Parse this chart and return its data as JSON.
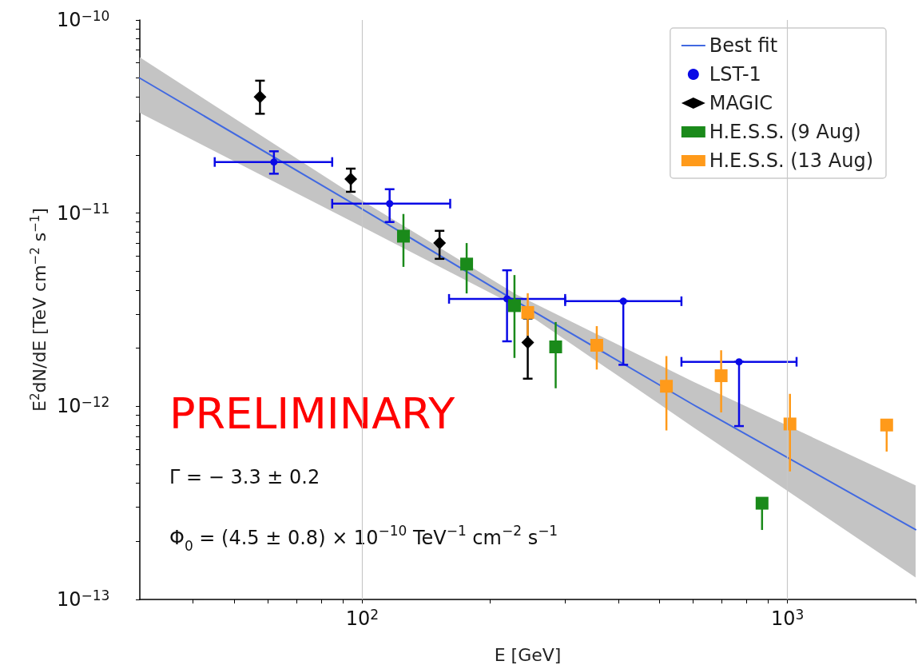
{
  "chart_data": {
    "type": "scatter",
    "log": "xy",
    "xlabel": "E [GeV]",
    "ylabel": "E$^{2}$dN/dE [TeV cm$^{−2}$ s$^{−1}$]",
    "xlim": [
      30,
      2000
    ],
    "ylim": [
      1e-13,
      1e-10
    ],
    "xticks": [
      {
        "value": 40,
        "label": null
      },
      {
        "value": 50,
        "label": null
      },
      {
        "value": 60,
        "label": null
      },
      {
        "value": 70,
        "label": null
      },
      {
        "value": 80,
        "label": null
      },
      {
        "value": 90,
        "label": null
      },
      {
        "value": 100,
        "label": "10$^{2}$"
      },
      {
        "value": 200,
        "label": null
      },
      {
        "value": 300,
        "label": null
      },
      {
        "value": 400,
        "label": null
      },
      {
        "value": 500,
        "label": null
      },
      {
        "value": 600,
        "label": null
      },
      {
        "value": 700,
        "label": null
      },
      {
        "value": 800,
        "label": null
      },
      {
        "value": 900,
        "label": null
      },
      {
        "value": 1000,
        "label": "10$^{3}$"
      },
      {
        "value": 2000,
        "label": null
      }
    ],
    "yticks": [
      {
        "value": 1e-13,
        "label": "10$^{−13}$"
      },
      {
        "value": 2e-13,
        "label": null
      },
      {
        "value": 3e-13,
        "label": null
      },
      {
        "value": 4e-13,
        "label": null
      },
      {
        "value": 5e-13,
        "label": null
      },
      {
        "value": 6e-13,
        "label": null
      },
      {
        "value": 7e-13,
        "label": null
      },
      {
        "value": 8e-13,
        "label": null
      },
      {
        "value": 9e-13,
        "label": null
      },
      {
        "value": 1e-12,
        "label": "10$^{−12}$"
      },
      {
        "value": 2e-12,
        "label": null
      },
      {
        "value": 3e-12,
        "label": null
      },
      {
        "value": 4e-12,
        "label": null
      },
      {
        "value": 5e-12,
        "label": null
      },
      {
        "value": 6e-12,
        "label": null
      },
      {
        "value": 7e-12,
        "label": null
      },
      {
        "value": 8e-12,
        "label": null
      },
      {
        "value": 9e-12,
        "label": null
      },
      {
        "value": 1e-11,
        "label": "10$^{−11}$"
      },
      {
        "value": 2e-11,
        "label": null
      },
      {
        "value": 3e-11,
        "label": null
      },
      {
        "value": 4e-11,
        "label": null
      },
      {
        "value": 5e-11,
        "label": null
      },
      {
        "value": 6e-11,
        "label": null
      },
      {
        "value": 7e-11,
        "label": null
      },
      {
        "value": 8e-11,
        "label": null
      },
      {
        "value": 9e-11,
        "label": null
      },
      {
        "value": 1e-10,
        "label": "10$^{−10}$"
      }
    ],
    "grid": true,
    "legend": "top right",
    "series": [
      {
        "name": "Best fit",
        "type": "line",
        "color": "#4169e1",
        "marker": "none",
        "line_style": "solid",
        "x": [
          30,
          100,
          230,
          600,
          2000
        ],
        "values": [
          5e-11,
          1.05e-11,
          3.5e-12,
          1.02e-12,
          2.3e-13
        ],
        "upper": [
          6.4e-11,
          1.16e-11,
          3.8e-12,
          1.34e-12,
          3.9e-13
        ],
        "lower": [
          3.3e-11,
          8.5e-12,
          3.3e-12,
          7.8e-13,
          1.3e-13
        ]
      },
      {
        "name": "LST-1",
        "color": "#0a0ae6",
        "marker": "circle",
        "x": [
          62,
          116,
          219,
          411,
          769
        ],
        "values": [
          1.84e-11,
          1.12e-11,
          3.6e-12,
          3.5e-12,
          1.7e-12
        ],
        "errors": [
          [
            1.6e-11,
            2.09e-11
          ],
          [
            9e-12,
            1.33e-11
          ],
          [
            2.17e-12,
            5.06e-12
          ],
          [
            1.64e-12,
            3.5e-12
          ],
          [
            7.9e-13,
            1.7e-12
          ]
        ],
        "xerrors": [
          [
            45,
            85
          ],
          [
            85,
            161
          ],
          [
            160,
            300
          ],
          [
            300,
            563
          ],
          [
            563,
            1050
          ]
        ]
      },
      {
        "name": "MAGIC",
        "color": "#000000",
        "marker": "diamond",
        "x": [
          57.5,
          94,
          152,
          245
        ],
        "values": [
          4e-11,
          1.5e-11,
          7e-12,
          2.14e-12
        ],
        "errors": [
          [
            3.27e-11,
            4.85e-11
          ],
          [
            1.29e-11,
            1.7e-11
          ],
          [
            5.8e-12,
            8.1e-12
          ],
          [
            1.39e-12,
            2.85e-12
          ]
        ]
      },
      {
        "name": "H.E.S.S. (9 Aug)",
        "color": "#1a8a1a",
        "marker": "square",
        "x": [
          125,
          176,
          228,
          285,
          871
        ],
        "values": [
          7.6e-12,
          5.45e-12,
          3.32e-12,
          2.03e-12,
          3.15e-13
        ],
        "errors": [
          [
            5.27e-12,
            9.9e-12
          ],
          [
            3.84e-12,
            7e-12
          ],
          [
            1.78e-12,
            4.78e-12
          ],
          [
            1.24e-12,
            2.73e-12
          ],
          [
            2.29e-13,
            3.15e-13
          ]
        ]
      },
      {
        "name": "H.E.S.S. (13 Aug)",
        "color": "#ff9a1a",
        "marker": "square",
        "x": [
          245,
          356,
          519,
          698,
          1013,
          1710
        ],
        "values": [
          3.06e-12,
          2.07e-12,
          1.27e-12,
          1.44e-12,
          8.1e-13,
          8e-13
        ],
        "errors": [
          [
            2.32e-12,
            3.85e-12
          ],
          [
            1.55e-12,
            2.6e-12
          ],
          [
            7.5e-13,
            1.82e-12
          ],
          [
            9.3e-13,
            1.95e-12
          ],
          [
            4.6e-13,
            1.16e-12
          ],
          [
            5.83e-13,
            8e-13
          ]
        ]
      }
    ],
    "annotations": [
      "PRELIMINARY",
      "Γ = − 3.3 ± 0.2",
      "Φ$_{0}$ = (4.5 ± 0.8) × 10$^{−10}$ TeV$^{−1}$ cm$^{−2}$ s$^{−1}$"
    ]
  }
}
